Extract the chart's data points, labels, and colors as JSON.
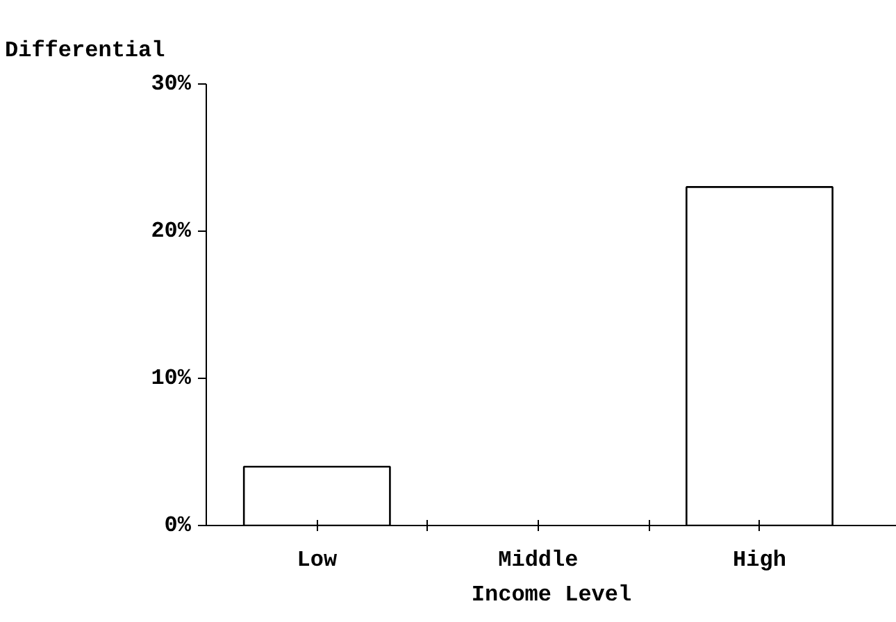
{
  "chart_data": {
    "type": "bar",
    "ylabel": "Differential",
    "xlabel": "Income Level",
    "categories": [
      "Low",
      "Middle",
      "High"
    ],
    "values": [
      4,
      0,
      23
    ],
    "color": "#ffffff",
    "ylim": [
      0,
      30
    ],
    "yticks": [
      {
        "value": 0,
        "label": "0%"
      },
      {
        "value": 10,
        "label": "10%"
      },
      {
        "value": 20,
        "label": "20%"
      },
      {
        "value": 30,
        "label": "30%"
      }
    ],
    "grid": false
  }
}
